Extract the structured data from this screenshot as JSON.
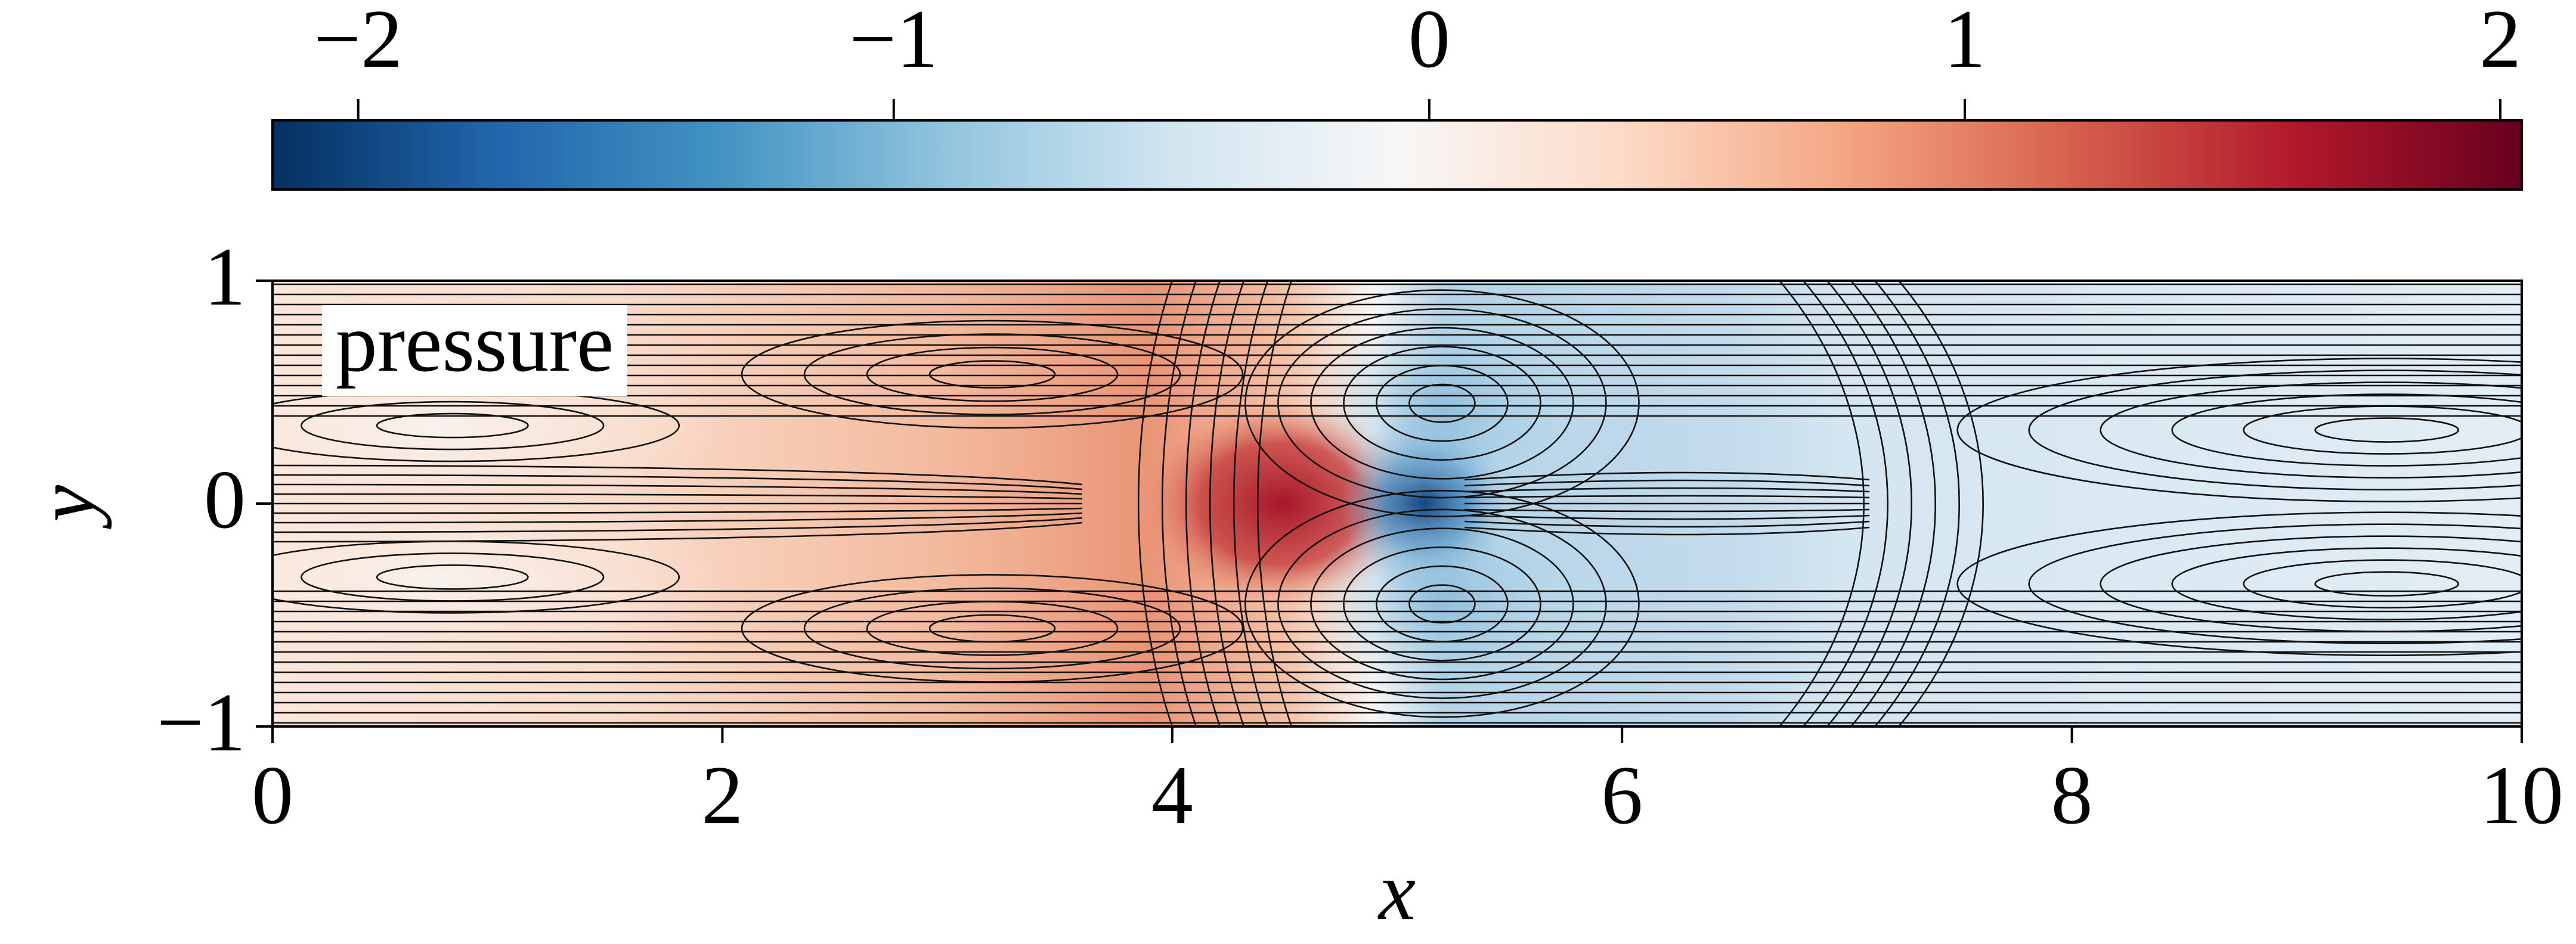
{
  "chart_data": {
    "type": "heatmap",
    "annotation": "pressure",
    "xlabel": "x",
    "ylabel": "y",
    "xlim": [
      0,
      10
    ],
    "ylim": [
      -1,
      1
    ],
    "xticks": [
      0,
      2,
      4,
      6,
      8,
      10
    ],
    "yticks": [
      {
        "value": -1,
        "label": "−1"
      },
      0,
      1
    ],
    "colorbar": {
      "clim": [
        -2.16,
        2.04
      ],
      "cmap": "RdBu_r",
      "ticks": [
        {
          "value": -2,
          "label": "−2"
        },
        {
          "value": -1,
          "label": "−1"
        },
        0,
        1,
        2
      ]
    }
  }
}
